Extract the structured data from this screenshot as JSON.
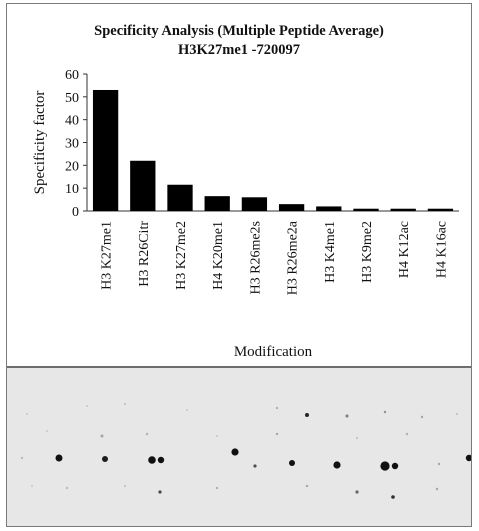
{
  "chart_data": {
    "type": "bar",
    "title": "Specificity Analysis (Multiple Peptide Average)",
    "subtitle": "H3K27me1 -720097",
    "xlabel": "Modification",
    "ylabel": "Specificity factor",
    "ylim": [
      0,
      60
    ],
    "yticks": [
      "0",
      "10",
      "20",
      "30",
      "40",
      "50",
      "60"
    ],
    "categories": [
      "H3 K27me1",
      "H3 R26Citr",
      "H3 K27me2",
      "H4 K20me1",
      "H3 R26me2s",
      "H3 R26me2a",
      "H3 K4me1",
      "H3 K9me2",
      "H4 K12ac",
      "H4 K16ac"
    ],
    "values": [
      53,
      22,
      11.5,
      6.5,
      6,
      3,
      2,
      1,
      1,
      1
    ],
    "bar_color": "#000000",
    "grid": false,
    "legend": false
  },
  "blot": {
    "background": "#e7e7e7",
    "spot_color": "#111111"
  }
}
